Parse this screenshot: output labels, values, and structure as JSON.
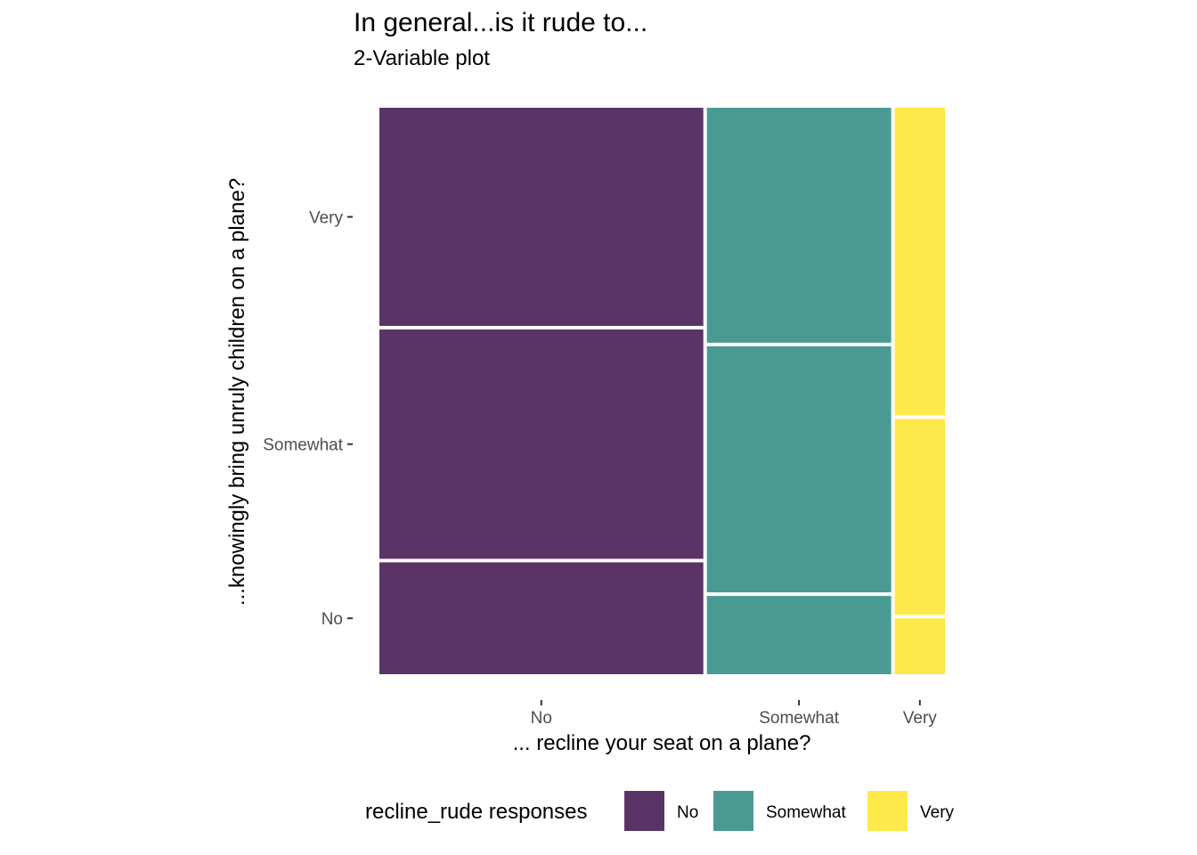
{
  "chart_data": {
    "type": "mosaic",
    "title": "In general...is it rude to...",
    "subtitle": "2-Variable plot",
    "xlabel": "... recline your seat on a plane?",
    "ylabel": "...knowingly bring unruly children on a plane?",
    "x_categories": [
      "No",
      "Somewhat",
      "Very"
    ],
    "y_categories": [
      "No",
      "Somewhat",
      "Very"
    ],
    "x_shares": [
      0.58,
      0.33,
      0.09
    ],
    "y_shares_within_x": [
      [
        0.2,
        0.41,
        0.39
      ],
      [
        0.14,
        0.44,
        0.42
      ],
      [
        0.1,
        0.35,
        0.55
      ]
    ],
    "legend": {
      "title": "recline_rude responses",
      "position": "bottom",
      "items": [
        {
          "label": "No",
          "color": "#5b3467"
        },
        {
          "label": "Somewhat",
          "color": "#4a9a94"
        },
        {
          "label": "Very",
          "color": "#fde94a"
        }
      ]
    }
  }
}
